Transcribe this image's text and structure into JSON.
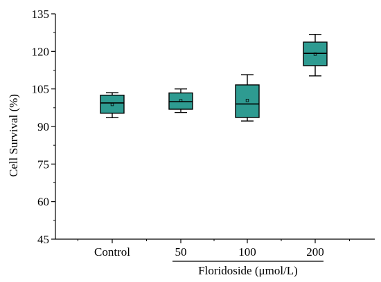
{
  "chart_data": {
    "type": "box",
    "ylabel": "Cell Survival (%)",
    "xlabel": "Floridoside (μmol/L)",
    "ylim": [
      45,
      135
    ],
    "yticks": [
      45,
      60,
      75,
      90,
      105,
      120,
      135
    ],
    "categories": [
      "Control",
      "50",
      "100",
      "200"
    ],
    "box_color": "#2e9b91",
    "boxes": [
      {
        "category": "Control",
        "min": 93.5,
        "q1": 95.3,
        "median": 99.4,
        "q3": 102.5,
        "max": 103.5,
        "mean": 98.8
      },
      {
        "category": "50",
        "min": 95.6,
        "q1": 96.9,
        "median": 99.9,
        "q3": 103.4,
        "max": 105.0,
        "mean": 100.3
      },
      {
        "category": "100",
        "min": 92.2,
        "q1": 93.6,
        "median": 99.0,
        "q3": 106.6,
        "max": 110.7,
        "mean": 100.4
      },
      {
        "category": "200",
        "min": 110.2,
        "q1": 114.3,
        "median": 119.2,
        "q3": 123.7,
        "max": 126.8,
        "mean": 118.9
      }
    ],
    "bracket_categories": [
      "50",
      "200"
    ]
  }
}
